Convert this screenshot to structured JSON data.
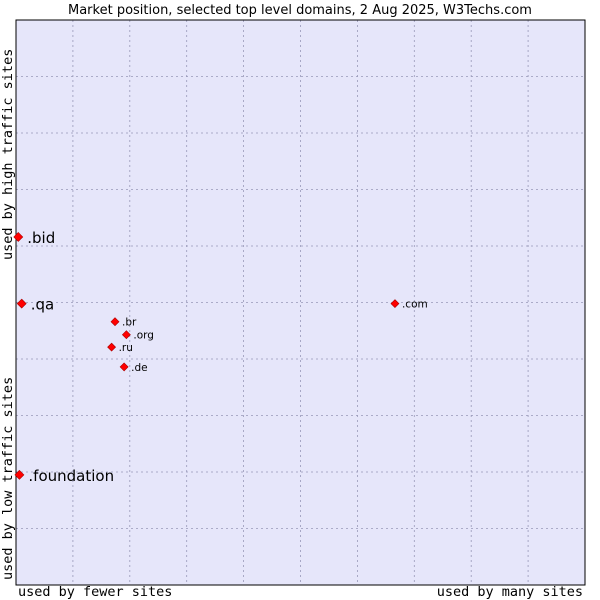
{
  "chart_data": {
    "type": "scatter",
    "title": "Market position, selected top level domains, 2 Aug 2025, W3Techs.com",
    "xlabel_left": "used by fewer sites",
    "xlabel_right": "used by many sites",
    "ylabel_top": "used by high traffic sites",
    "ylabel_bottom": "used by low traffic sites",
    "xlim": [
      0,
      100
    ],
    "ylim": [
      0,
      100
    ],
    "grid": true,
    "colors": {
      "plot_bg": "#e6e6fa",
      "grid": "#9898b8",
      "marker": "#ff0000",
      "marker_edge": "#aa0000"
    },
    "points": [
      {
        "label": ".bid",
        "x": 0.4,
        "y": 61.6,
        "size": "large"
      },
      {
        "label": ".qa",
        "x": 1.0,
        "y": 49.8,
        "size": "large"
      },
      {
        "label": ".foundation",
        "x": 0.6,
        "y": 19.5,
        "size": "large"
      },
      {
        "label": ".com",
        "x": 66.6,
        "y": 49.8,
        "size": "small"
      },
      {
        "label": ".br",
        "x": 17.4,
        "y": 46.6,
        "size": "small"
      },
      {
        "label": ".org",
        "x": 19.4,
        "y": 44.3,
        "size": "small"
      },
      {
        "label": ".ru",
        "x": 16.8,
        "y": 42.1,
        "size": "small"
      },
      {
        "label": ".de",
        "x": 19.0,
        "y": 38.6,
        "size": "small"
      }
    ]
  }
}
